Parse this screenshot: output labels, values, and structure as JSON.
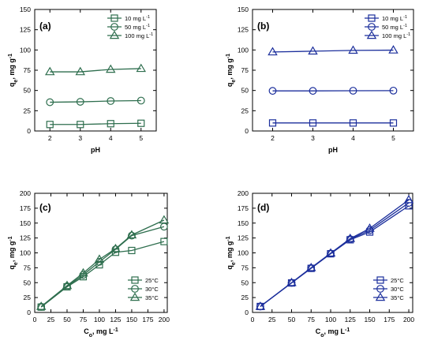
{
  "chart_data": [
    {
      "type": "line",
      "panel_label": "(a)",
      "color": "#2e6e4e",
      "x": [
        2,
        3,
        4,
        5
      ],
      "xlabel": "pH",
      "ylabel": "q",
      "ylabel_sub": "e",
      "ylabel_unit": ", mg g",
      "ylabel_sup": "-1",
      "xlim": [
        1.5,
        5.5
      ],
      "ylim": [
        0,
        150
      ],
      "xticks": [
        "2",
        "3",
        "4",
        "5"
      ],
      "yticks": [
        "0",
        "25",
        "50",
        "75",
        "100",
        "125",
        "150"
      ],
      "grid": false,
      "legend_position": "top-right",
      "series": [
        {
          "name": "10 mg L",
          "name_sup": "-1",
          "marker": "square",
          "values": [
            8,
            8,
            9,
            9.5
          ]
        },
        {
          "name": "50 mg L",
          "name_sup": "-1",
          "marker": "circle",
          "values": [
            35.5,
            36,
            37,
            37.5
          ]
        },
        {
          "name": "100 mg L",
          "name_sup": "-1",
          "marker": "triangle",
          "values": [
            73,
            73,
            76,
            77
          ]
        }
      ]
    },
    {
      "type": "line",
      "panel_label": "(b)",
      "color": "#1c2f9c",
      "x": [
        2,
        3,
        4,
        5
      ],
      "xlabel": "pH",
      "ylabel": "q",
      "ylabel_sub": "e",
      "ylabel_unit": ", mg g",
      "ylabel_sup": "-1",
      "xlim": [
        1.5,
        5.5
      ],
      "ylim": [
        0,
        150
      ],
      "xticks": [
        "2",
        "3",
        "4",
        "5"
      ],
      "yticks": [
        "0",
        "25",
        "50",
        "75",
        "100",
        "125",
        "150"
      ],
      "grid": false,
      "legend_position": "top-right",
      "series": [
        {
          "name": "10 mg L",
          "name_sup": "-1",
          "marker": "square",
          "values": [
            9.9,
            9.9,
            9.9,
            9.9
          ]
        },
        {
          "name": "50 mg L",
          "name_sup": "-1",
          "marker": "circle",
          "values": [
            49.5,
            49.5,
            49.7,
            49.8
          ]
        },
        {
          "name": "100 mg L",
          "name_sup": "-1",
          "marker": "triangle",
          "values": [
            97.5,
            98.5,
            99.5,
            99.8
          ]
        }
      ]
    },
    {
      "type": "line",
      "panel_label": "(c)",
      "color": "#2e6e4e",
      "x": [
        10,
        50,
        75,
        100,
        125,
        150,
        200
      ],
      "xlabel": "C",
      "xlabel_sub": "o",
      "xlabel_unit": ", mg L",
      "xlabel_sup": "-1",
      "ylabel": "q",
      "ylabel_sub": "e",
      "ylabel_unit": ", mg g",
      "ylabel_sup": "-1",
      "xlim": [
        0,
        205
      ],
      "ylim": [
        0,
        200
      ],
      "xticks": [
        "0",
        "25",
        "50",
        "75",
        "100",
        "125",
        "150",
        "175",
        "200"
      ],
      "yticks": [
        "0",
        "25",
        "50",
        "75",
        "100",
        "125",
        "150",
        "175",
        "200"
      ],
      "grid": false,
      "legend_position": "bottom-right",
      "series": [
        {
          "name": "25°C",
          "marker": "square",
          "values": [
            9,
            43,
            60,
            80,
            101,
            104,
            119
          ]
        },
        {
          "name": "30°C",
          "marker": "circle",
          "values": [
            9.5,
            44,
            63,
            85,
            106,
            129,
            144
          ]
        },
        {
          "name": "35°C",
          "marker": "triangle",
          "values": [
            10,
            45,
            66,
            89,
            107,
            130,
            155
          ]
        }
      ]
    },
    {
      "type": "line",
      "panel_label": "(d)",
      "color": "#1c2f9c",
      "x": [
        10,
        50,
        75,
        100,
        125,
        150,
        200
      ],
      "xlabel": "C",
      "xlabel_sub": "o",
      "xlabel_unit": ", mg L",
      "xlabel_sup": "-1",
      "ylabel": "q",
      "ylabel_sub": "e",
      "ylabel_unit": ", mg g",
      "ylabel_sup": "-1",
      "xlim": [
        0,
        205
      ],
      "ylim": [
        0,
        200
      ],
      "xticks": [
        "0",
        "25",
        "50",
        "75",
        "100",
        "125",
        "150",
        "175",
        "200"
      ],
      "yticks": [
        "0",
        "25",
        "50",
        "75",
        "100",
        "125",
        "150",
        "175",
        "200"
      ],
      "grid": false,
      "legend_position": "bottom-right",
      "series": [
        {
          "name": "25°C",
          "marker": "square",
          "values": [
            10,
            49.5,
            74,
            98.5,
            122,
            135,
            179
          ]
        },
        {
          "name": "30°C",
          "marker": "circle",
          "values": [
            10,
            49.7,
            74.5,
            99,
            123,
            138,
            184
          ]
        },
        {
          "name": "35°C",
          "marker": "triangle",
          "values": [
            10,
            50,
            75,
            99.5,
            124,
            141,
            189
          ]
        }
      ]
    }
  ]
}
